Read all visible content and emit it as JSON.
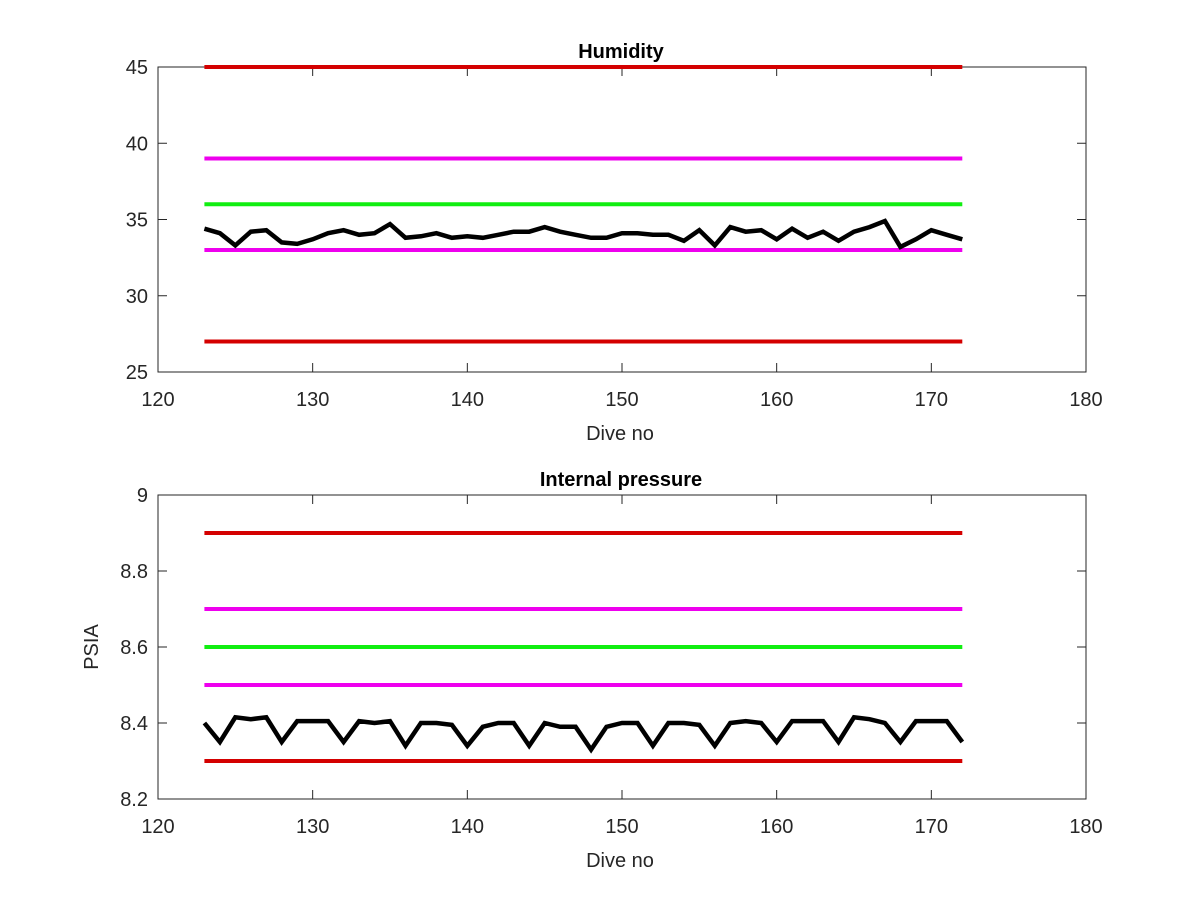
{
  "colors": {
    "red_limit": "#d40000",
    "magenta_limit": "#ee00ee",
    "green_target": "#11ee11",
    "data_line": "#000000",
    "axis": "#262626"
  },
  "chart_data": [
    {
      "type": "line",
      "title": "Humidity",
      "xlabel": "Dive no",
      "ylabel": "",
      "xlim": [
        120,
        180
      ],
      "ylim": [
        25,
        45
      ],
      "xticks": [
        120,
        130,
        140,
        150,
        160,
        170,
        180
      ],
      "yticks": [
        25,
        30,
        35,
        40,
        45
      ],
      "grid": false,
      "series": [
        {
          "role": "limit",
          "color": "red_limit",
          "x": [
            123,
            172
          ],
          "y": [
            45,
            45
          ]
        },
        {
          "role": "limit",
          "color": "magenta_limit",
          "x": [
            123,
            172
          ],
          "y": [
            39,
            39
          ]
        },
        {
          "role": "target",
          "color": "green_target",
          "x": [
            123,
            172
          ],
          "y": [
            36,
            36
          ]
        },
        {
          "role": "limit",
          "color": "magenta_limit",
          "x": [
            123,
            172
          ],
          "y": [
            33,
            33
          ]
        },
        {
          "role": "limit",
          "color": "red_limit",
          "x": [
            123,
            172
          ],
          "y": [
            27,
            27
          ]
        },
        {
          "role": "data",
          "color": "data_line",
          "x": [
            123,
            124,
            125,
            126,
            127,
            128,
            129,
            130,
            131,
            132,
            133,
            134,
            135,
            136,
            137,
            138,
            139,
            140,
            141,
            142,
            143,
            144,
            145,
            146,
            147,
            148,
            149,
            150,
            151,
            152,
            153,
            154,
            155,
            156,
            157,
            158,
            159,
            160,
            161,
            162,
            163,
            164,
            165,
            166,
            167,
            168,
            169,
            170,
            171,
            172
          ],
          "y": [
            34.4,
            34.1,
            33.3,
            34.2,
            34.3,
            33.5,
            33.4,
            33.7,
            34.1,
            34.3,
            34.0,
            34.1,
            34.7,
            33.8,
            33.9,
            34.1,
            33.8,
            33.9,
            33.8,
            34.0,
            34.2,
            34.2,
            34.5,
            34.2,
            34.0,
            33.8,
            33.8,
            34.1,
            34.1,
            34.0,
            34.0,
            33.6,
            34.3,
            33.3,
            34.5,
            34.2,
            34.3,
            33.7,
            34.4,
            33.8,
            34.2,
            33.6,
            34.2,
            34.5,
            34.9,
            33.2,
            33.7,
            34.3,
            34.0,
            33.7
          ]
        }
      ]
    },
    {
      "type": "line",
      "title": "Internal pressure",
      "xlabel": "Dive no",
      "ylabel": "PSIA",
      "xlim": [
        120,
        180
      ],
      "ylim": [
        8.2,
        9
      ],
      "xticks": [
        120,
        130,
        140,
        150,
        160,
        170,
        180
      ],
      "yticks": [
        "8.2",
        "8.4",
        "8.6",
        "8.8",
        "9"
      ],
      "grid": false,
      "series": [
        {
          "role": "limit",
          "color": "red_limit",
          "x": [
            123,
            172
          ],
          "y": [
            8.9,
            8.9
          ]
        },
        {
          "role": "limit",
          "color": "magenta_limit",
          "x": [
            123,
            172
          ],
          "y": [
            8.7,
            8.7
          ]
        },
        {
          "role": "target",
          "color": "green_target",
          "x": [
            123,
            172
          ],
          "y": [
            8.6,
            8.6
          ]
        },
        {
          "role": "limit",
          "color": "magenta_limit",
          "x": [
            123,
            172
          ],
          "y": [
            8.5,
            8.5
          ]
        },
        {
          "role": "limit",
          "color": "red_limit",
          "x": [
            123,
            172
          ],
          "y": [
            8.3,
            8.3
          ]
        },
        {
          "role": "data",
          "color": "data_line",
          "x": [
            123,
            124,
            125,
            126,
            127,
            128,
            129,
            130,
            131,
            132,
            133,
            134,
            135,
            136,
            137,
            138,
            139,
            140,
            141,
            142,
            143,
            144,
            145,
            146,
            147,
            148,
            149,
            150,
            151,
            152,
            153,
            154,
            155,
            156,
            157,
            158,
            159,
            160,
            161,
            162,
            163,
            164,
            165,
            166,
            167,
            168,
            169,
            170,
            171,
            172
          ],
          "y": [
            8.4,
            8.35,
            8.415,
            8.41,
            8.415,
            8.35,
            8.405,
            8.405,
            8.405,
            8.35,
            8.405,
            8.4,
            8.405,
            8.34,
            8.4,
            8.4,
            8.395,
            8.34,
            8.39,
            8.4,
            8.4,
            8.34,
            8.4,
            8.39,
            8.39,
            8.33,
            8.39,
            8.4,
            8.4,
            8.34,
            8.4,
            8.4,
            8.395,
            8.34,
            8.4,
            8.405,
            8.4,
            8.35,
            8.405,
            8.405,
            8.405,
            8.35,
            8.415,
            8.41,
            8.4,
            8.35,
            8.405,
            8.405,
            8.405,
            8.35
          ]
        }
      ]
    }
  ]
}
